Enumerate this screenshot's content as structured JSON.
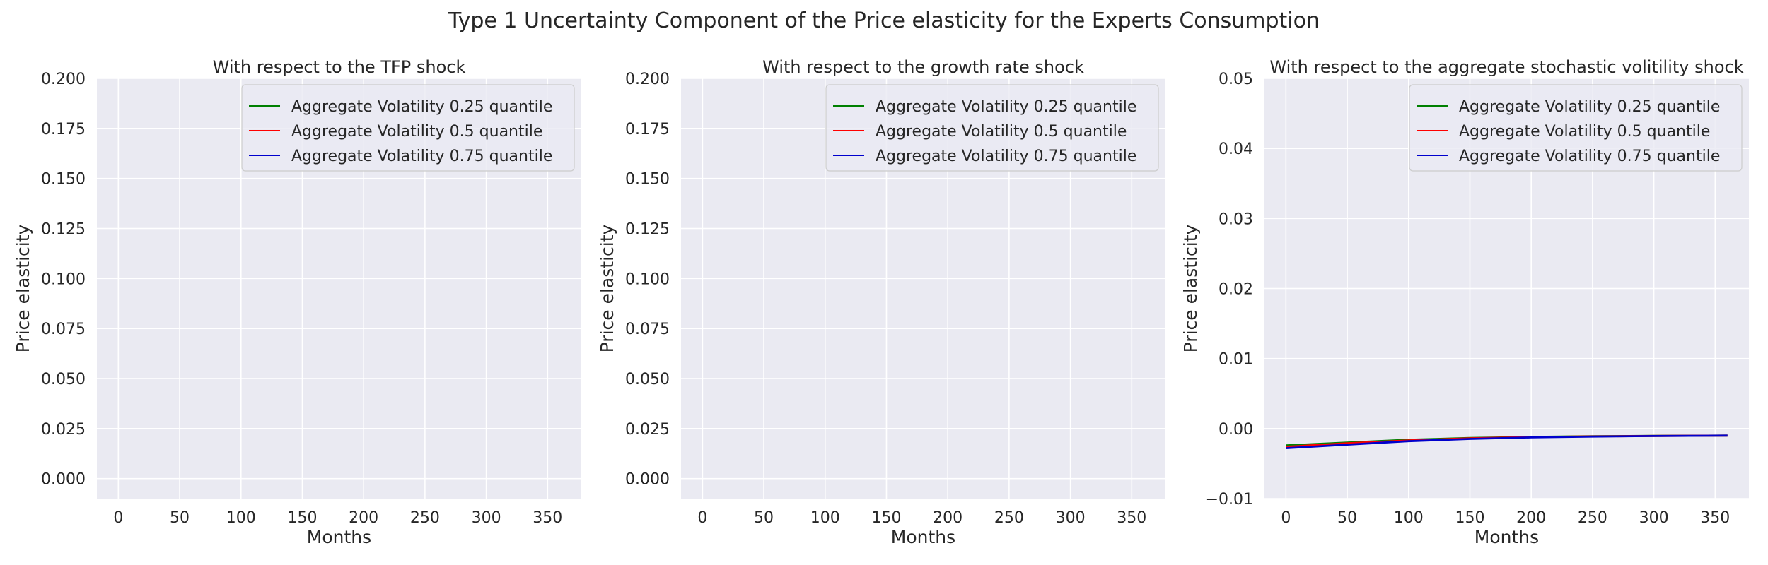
{
  "figure_title": "Type 1 Uncertainty Component of the Price elasticity for the Experts Consumption",
  "colors": {
    "axes_bg": "#EAEAF2",
    "grid": "#FFFFFF",
    "text": "#262626",
    "series": [
      "#008000",
      "#FF0000",
      "#0000CD"
    ]
  },
  "chart_data": [
    {
      "type": "line",
      "title": "With respect to the TFP shock",
      "xlabel": "Months",
      "ylabel": "Price elasticity",
      "xlim": [
        -17.5,
        377.5
      ],
      "ylim": [
        -0.01,
        0.2
      ],
      "xticks": [
        0,
        50,
        100,
        150,
        200,
        250,
        300,
        350
      ],
      "xtick_labels": [
        "0",
        "50",
        "100",
        "150",
        "200",
        "250",
        "300",
        "350"
      ],
      "yticks": [
        0.0,
        0.025,
        0.05,
        0.075,
        0.1,
        0.125,
        0.15,
        0.175,
        0.2
      ],
      "ytick_labels": [
        "0.000",
        "0.025",
        "0.050",
        "0.075",
        "0.100",
        "0.125",
        "0.150",
        "0.175",
        "0.200"
      ],
      "grid": true,
      "legend_position": "top-right",
      "series": [
        {
          "name": "Aggregate Volatility 0.25 quantile",
          "x": [],
          "y": []
        },
        {
          "name": "Aggregate Volatility 0.5 quantile",
          "x": [],
          "y": []
        },
        {
          "name": "Aggregate Volatility 0.75 quantile",
          "x": [],
          "y": []
        }
      ]
    },
    {
      "type": "line",
      "title": "With respect to the growth rate shock",
      "xlabel": "Months",
      "ylabel": "Price elasticity",
      "xlim": [
        -17.5,
        377.5
      ],
      "ylim": [
        -0.01,
        0.2
      ],
      "xticks": [
        0,
        50,
        100,
        150,
        200,
        250,
        300,
        350
      ],
      "xtick_labels": [
        "0",
        "50",
        "100",
        "150",
        "200",
        "250",
        "300",
        "350"
      ],
      "yticks": [
        0.0,
        0.025,
        0.05,
        0.075,
        0.1,
        0.125,
        0.15,
        0.175,
        0.2
      ],
      "ytick_labels": [
        "0.000",
        "0.025",
        "0.050",
        "0.075",
        "0.100",
        "0.125",
        "0.150",
        "0.175",
        "0.200"
      ],
      "grid": true,
      "legend_position": "top-right",
      "series": [
        {
          "name": "Aggregate Volatility 0.25 quantile",
          "x": [],
          "y": []
        },
        {
          "name": "Aggregate Volatility 0.5 quantile",
          "x": [],
          "y": []
        },
        {
          "name": "Aggregate Volatility 0.75 quantile",
          "x": [],
          "y": []
        }
      ]
    },
    {
      "type": "line",
      "title": "With respect to the aggregate stochastic volitility shock",
      "xlabel": "Months",
      "ylabel": "Price elasticity",
      "xlim": [
        -17.5,
        377.5
      ],
      "ylim": [
        -0.01,
        0.05
      ],
      "xticks": [
        0,
        50,
        100,
        150,
        200,
        250,
        300,
        350
      ],
      "xtick_labels": [
        "0",
        "50",
        "100",
        "150",
        "200",
        "250",
        "300",
        "350"
      ],
      "yticks": [
        -0.01,
        0.0,
        0.01,
        0.02,
        0.03,
        0.04,
        0.05
      ],
      "ytick_labels": [
        "−0.01",
        "0.00",
        "0.01",
        "0.02",
        "0.03",
        "0.04",
        "0.05"
      ],
      "grid": true,
      "legend_position": "top-right",
      "series": [
        {
          "name": "Aggregate Volatility 0.25 quantile",
          "x": [
            0,
            50,
            100,
            150,
            200,
            250,
            300,
            360
          ],
          "y": [
            -0.0024,
            -0.002,
            -0.0016,
            -0.00135,
            -0.0012,
            -0.0011,
            -0.00105,
            -0.001
          ]
        },
        {
          "name": "Aggregate Volatility 0.5 quantile",
          "x": [
            0,
            50,
            100,
            150,
            200,
            250,
            300,
            360
          ],
          "y": [
            -0.0026,
            -0.0021,
            -0.0017,
            -0.0014,
            -0.00122,
            -0.00112,
            -0.00106,
            -0.001
          ]
        },
        {
          "name": "Aggregate Volatility 0.75 quantile",
          "x": [
            0,
            50,
            100,
            150,
            200,
            250,
            300,
            360
          ],
          "y": [
            -0.0028,
            -0.0023,
            -0.0018,
            -0.00148,
            -0.00127,
            -0.00115,
            -0.00107,
            -0.001
          ]
        }
      ]
    }
  ]
}
